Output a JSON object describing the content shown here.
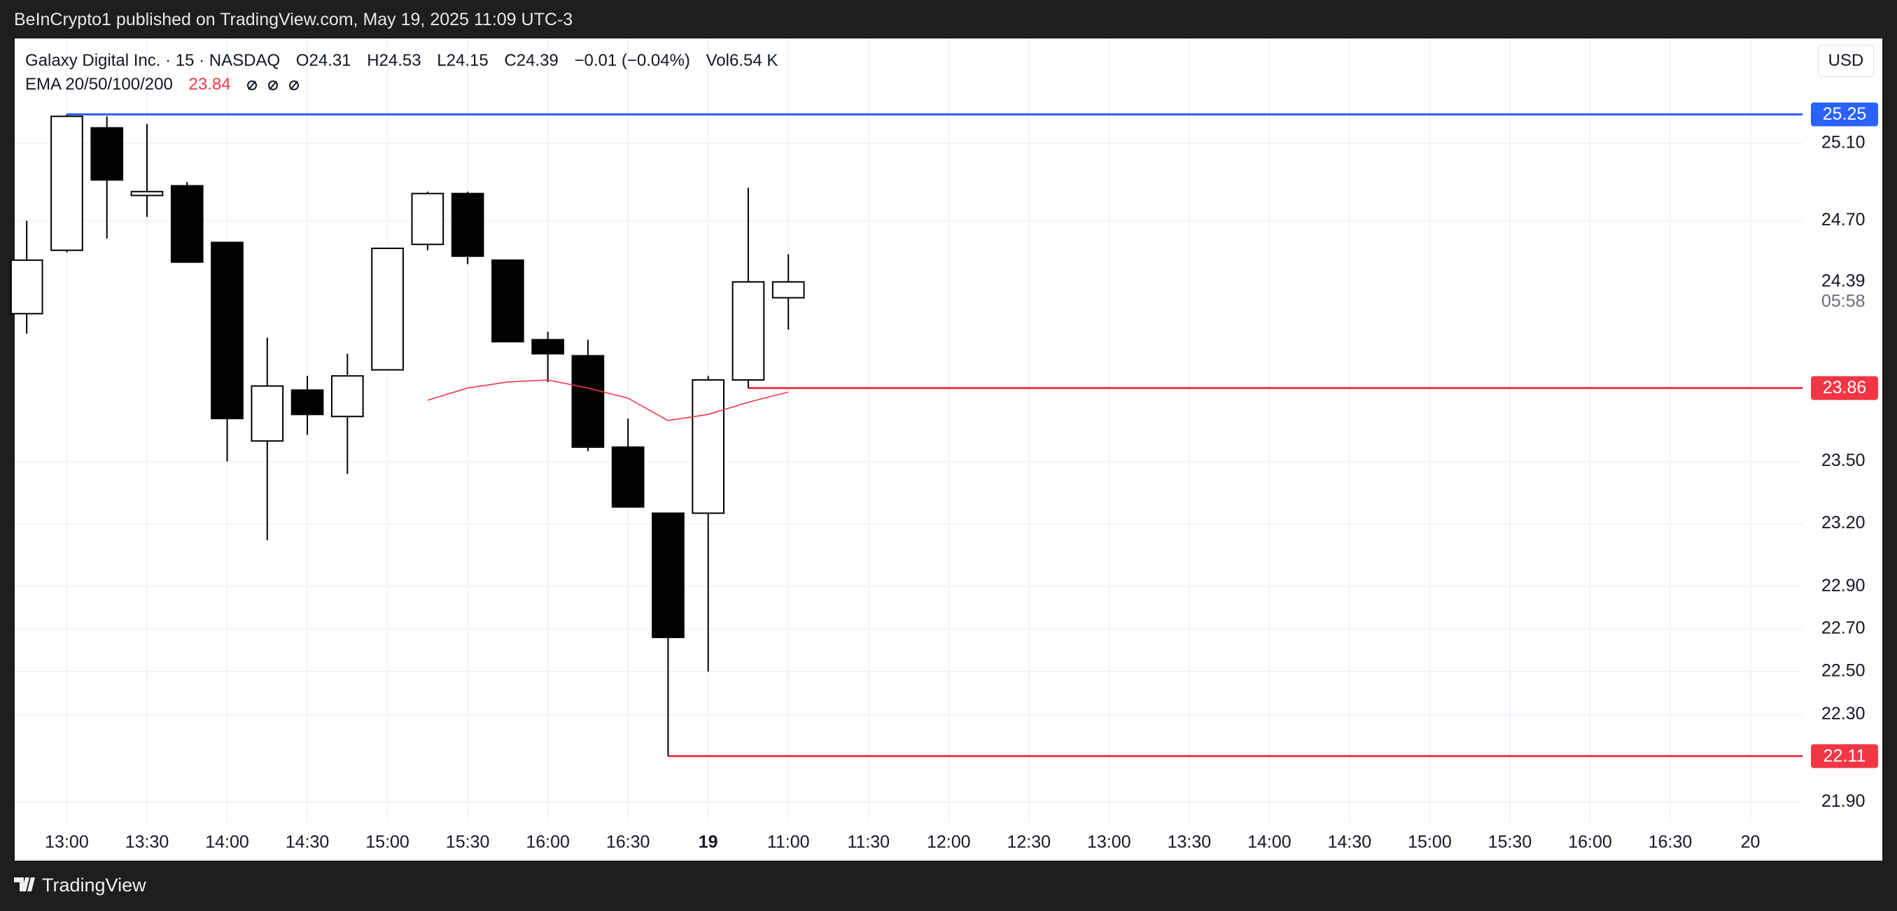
{
  "header": {
    "published": "BeInCrypto1 published on TradingView.com, May 19, 2025 11:09 UTC-3"
  },
  "footer": {
    "brand": "TradingView"
  },
  "chart_data": {
    "type": "candlestick",
    "symbol": "Galaxy Digital Inc. · 15 · NASDAQ",
    "ohlc_labels": [
      "O",
      "H",
      "L",
      "C"
    ],
    "change": "−0.01 (−0.04%)",
    "volume_label": "Vol",
    "volume": "6.54 K",
    "currency": "USD",
    "x": [
      0,
      1,
      2,
      3,
      4,
      5,
      6,
      7,
      8,
      9,
      10,
      11,
      12,
      13,
      14,
      15,
      16,
      17,
      18,
      19
    ],
    "open": [
      24.23,
      24.55,
      25.18,
      24.83,
      24.88,
      24.59,
      23.6,
      23.85,
      23.72,
      23.95,
      24.58,
      24.84,
      24.5,
      24.1,
      24.02,
      23.57,
      23.25,
      23.25,
      23.9,
      24.31
    ],
    "high": [
      24.7,
      25.25,
      25.24,
      25.2,
      24.9,
      24.59,
      24.11,
      23.92,
      24.03,
      24.56,
      24.85,
      24.85,
      24.5,
      24.14,
      24.1,
      23.71,
      23.25,
      23.92,
      24.87,
      24.53
    ],
    "low": [
      24.13,
      24.54,
      24.61,
      24.72,
      24.49,
      23.5,
      23.12,
      23.63,
      23.44,
      23.95,
      24.55,
      24.48,
      24.09,
      23.89,
      23.55,
      23.28,
      22.11,
      22.5,
      23.86,
      24.15
    ],
    "close": [
      24.5,
      25.24,
      24.91,
      24.85,
      24.49,
      23.71,
      23.87,
      23.73,
      23.92,
      24.56,
      24.84,
      24.52,
      24.09,
      24.03,
      23.57,
      23.28,
      22.66,
      23.9,
      24.39,
      24.39
    ],
    "up_color": "#ffffff",
    "down_color": "#000000",
    "wick_color": "#000000",
    "indicator": {
      "name": "EMA 20/50/100/200",
      "color": "#f23645",
      "values": [
        null,
        null,
        null,
        null,
        null,
        null,
        null,
        null,
        null,
        null,
        23.8,
        23.86,
        23.89,
        23.9,
        23.86,
        23.81,
        23.7,
        23.73,
        23.79,
        23.84
      ]
    },
    "hlines": [
      {
        "value": 25.25,
        "color": "#2962ff",
        "from": 1
      },
      {
        "value": 23.86,
        "color": "#f23645",
        "from": 18
      },
      {
        "value": 22.11,
        "color": "#f23645",
        "from": 16
      }
    ],
    "last_price": {
      "countdown": "05:58"
    },
    "xlim": [
      -0.3,
      44.3
    ],
    "xticks": [
      {
        "value": 1,
        "label": "13:00"
      },
      {
        "value": 3,
        "label": "13:30"
      },
      {
        "value": 5,
        "label": "14:00"
      },
      {
        "value": 7,
        "label": "14:30"
      },
      {
        "value": 9,
        "label": "15:00"
      },
      {
        "value": 11,
        "label": "15:30"
      },
      {
        "value": 13,
        "label": "16:00"
      },
      {
        "value": 15,
        "label": "16:30"
      },
      {
        "value": 17,
        "label": "19",
        "bold": true
      },
      {
        "value": 19,
        "label": "11:00"
      },
      {
        "value": 21,
        "label": "11:30"
      },
      {
        "value": 23,
        "label": "12:00"
      },
      {
        "value": 25,
        "label": "12:30"
      },
      {
        "value": 27,
        "label": "13:00"
      },
      {
        "value": 29,
        "label": "13:30"
      },
      {
        "value": 31,
        "label": "14:00"
      },
      {
        "value": 33,
        "label": "14:30"
      },
      {
        "value": 35,
        "label": "15:00"
      },
      {
        "value": 37,
        "label": "15:30"
      },
      {
        "value": 39,
        "label": "16:00"
      },
      {
        "value": 41,
        "label": "16:30"
      },
      {
        "value": 43,
        "label": "20"
      }
    ],
    "ylim": [
      21.81,
      25.65
    ],
    "yticks": [
      {
        "value": 25.1,
        "label": "25.10"
      },
      {
        "value": 24.7,
        "label": "24.70"
      },
      {
        "value": 23.5,
        "label": "23.50"
      },
      {
        "value": 23.2,
        "label": "23.20"
      },
      {
        "value": 22.9,
        "label": "22.90"
      },
      {
        "value": 22.7,
        "label": "22.70"
      },
      {
        "value": 22.5,
        "label": "22.50"
      },
      {
        "value": 22.3,
        "label": "22.30"
      },
      {
        "value": 21.9,
        "label": "21.90"
      }
    ],
    "log_y": true,
    "grid": true
  }
}
